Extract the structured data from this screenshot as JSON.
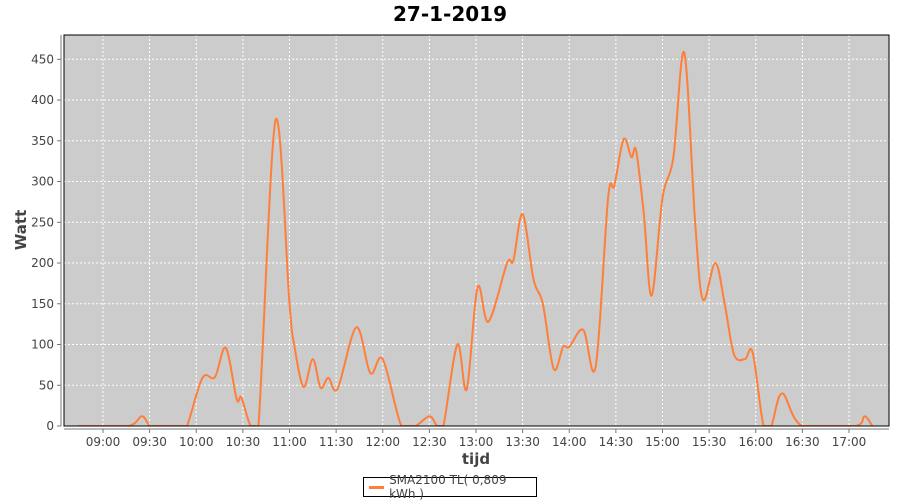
{
  "chart_data": {
    "type": "line",
    "title": "27-1-2019",
    "xlabel": "tijd",
    "ylabel": "Watt",
    "ylim": [
      0,
      470
    ],
    "xlim": [
      "08:38",
      "17:24"
    ],
    "grid": true,
    "legend_placement": "bottom",
    "yticks": [
      0,
      50,
      100,
      150,
      200,
      250,
      300,
      350,
      400,
      450
    ],
    "xticks": [
      "09:00",
      "09:30",
      "10:00",
      "10:30",
      "11:00",
      "11:30",
      "12:00",
      "12:30",
      "13:00",
      "13:30",
      "14:00",
      "14:30",
      "15:00",
      "15:30",
      "16:00",
      "16:30",
      "17:00"
    ],
    "colors": {
      "plot_background": "#cccccc",
      "grid": "#ffffff",
      "series": "#ff7f3a"
    },
    "series": [
      {
        "name": "SMA2100 TL( 0,809 kWh )",
        "x": [
          "08:44",
          "09:16",
          "09:25",
          "09:30",
          "09:34",
          "09:50",
          "09:54",
          "10:04",
          "10:12",
          "10:19",
          "10:26",
          "10:29",
          "10:35",
          "10:40",
          "10:51",
          "11:00",
          "11:03",
          "11:09",
          "11:15",
          "11:20",
          "11:25",
          "11:31",
          "11:43",
          "11:52",
          "12:00",
          "12:12",
          "12:21",
          "12:30",
          "12:35",
          "12:39",
          "12:48",
          "12:54",
          "13:01",
          "13:08",
          "13:20",
          "13:24",
          "13:30",
          "13:37",
          "13:43",
          "13:50",
          "13:56",
          "14:00",
          "14:09",
          "14:17",
          "14:25",
          "14:29",
          "14:35",
          "14:40",
          "14:43",
          "14:48",
          "14:53",
          "15:00",
          "15:07",
          "15:14",
          "15:21",
          "15:26",
          "15:34",
          "15:40",
          "15:46",
          "15:53",
          "15:58",
          "16:05",
          "16:10",
          "16:17",
          "16:30",
          "17:04",
          "17:10",
          "17:15"
        ],
        "y": [
          0,
          0,
          12,
          0,
          0,
          0,
          0,
          59,
          60,
          96,
          33,
          35,
          0,
          0,
          375,
          150,
          100,
          48,
          82,
          47,
          59,
          46,
          121,
          65,
          82,
          0,
          0,
          12,
          0,
          0,
          100,
          45,
          170,
          128,
          200,
          203,
          260,
          180,
          150,
          70,
          97,
          97,
          118,
          73,
          280,
          295,
          352,
          330,
          338,
          260,
          160,
          280,
          330,
          458,
          250,
          155,
          200,
          150,
          88,
          82,
          90,
          0,
          0,
          40,
          0,
          0,
          12,
          0
        ]
      }
    ]
  }
}
